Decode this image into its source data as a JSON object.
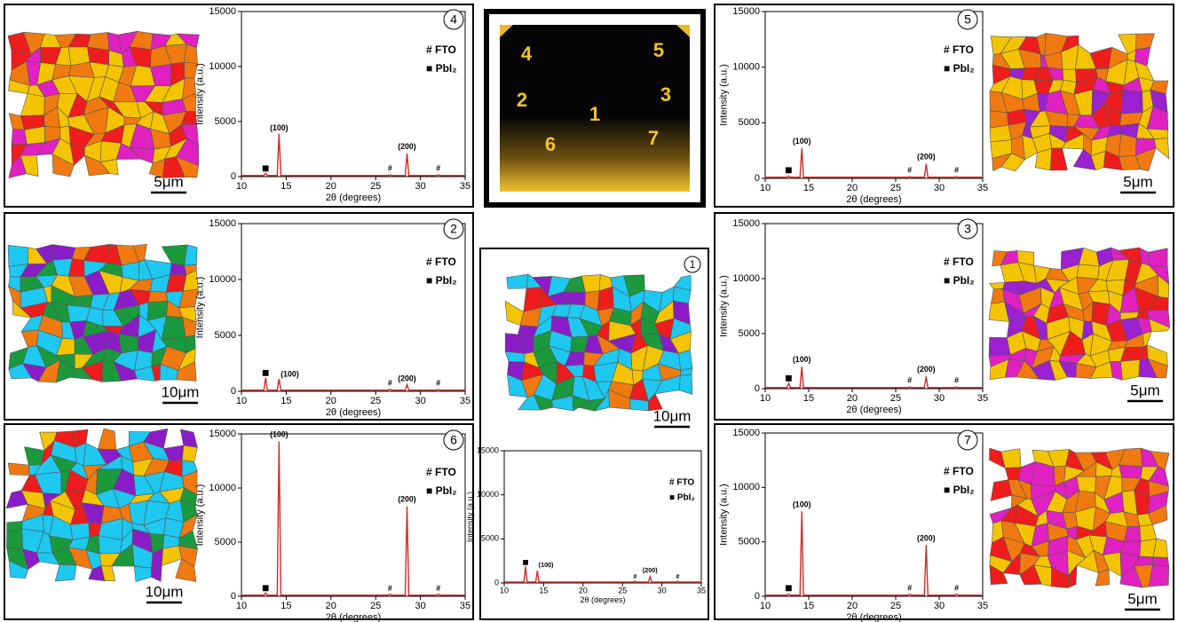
{
  "chart_data": [
    {
      "type": "line",
      "panel": "4",
      "scale_bar": "5μm",
      "xlabel": "2θ (degrees)",
      "ylabel": "Intensity (a.u.)",
      "xlim": [
        10,
        35
      ],
      "xticks": [
        10,
        15,
        20,
        25,
        30,
        35
      ],
      "ylim": [
        0,
        15000
      ],
      "yticks": [
        0,
        5000,
        10000,
        15000
      ],
      "legend": [
        "# FTO",
        "■ PbI₂"
      ],
      "series": [
        {
          "color": "#d62a2a",
          "x": [
            10,
            12.5,
            12.7,
            12.9,
            14.0,
            14.2,
            14.4,
            26.4,
            26.6,
            26.8,
            28.3,
            28.5,
            28.7,
            31.8,
            32,
            32.2,
            35
          ],
          "values": [
            100,
            100,
            300,
            100,
            100,
            3900,
            100,
            100,
            150,
            100,
            100,
            2100,
            100,
            100,
            150,
            100,
            100
          ]
        }
      ],
      "annotations": [
        {
          "text": "■",
          "x": 12.7,
          "y": 700
        },
        {
          "text": "(100)",
          "x": 14.2,
          "y": 4400
        },
        {
          "text": "(200)",
          "x": 28.5,
          "y": 2700
        },
        {
          "text": "#",
          "x": 26.6,
          "y": 700
        },
        {
          "text": "#",
          "x": 32,
          "y": 700
        }
      ]
    },
    {
      "type": "line",
      "panel": "5",
      "scale_bar": "5μm",
      "xlabel": "2θ (degrees)",
      "ylabel": "Intensity (a.u.)",
      "xlim": [
        10,
        35
      ],
      "xticks": [
        10,
        15,
        20,
        25,
        30,
        35
      ],
      "ylim": [
        0,
        15000
      ],
      "yticks": [
        0,
        5000,
        10000,
        15000
      ],
      "legend": [
        "# FTO",
        "■ PbI₂"
      ],
      "series": [
        {
          "color": "#d62a2a",
          "x": [
            10,
            12.5,
            12.7,
            12.9,
            14.0,
            14.2,
            14.4,
            26.4,
            26.6,
            26.8,
            28.3,
            28.5,
            28.7,
            31.8,
            32,
            32.2,
            35
          ],
          "values": [
            100,
            100,
            200,
            100,
            100,
            2700,
            100,
            100,
            150,
            100,
            100,
            1300,
            100,
            100,
            150,
            100,
            100
          ]
        }
      ],
      "annotations": [
        {
          "text": "■",
          "x": 12.7,
          "y": 700
        },
        {
          "text": "(100)",
          "x": 14.2,
          "y": 3300
        },
        {
          "text": "(200)",
          "x": 28.5,
          "y": 1900
        },
        {
          "text": "#",
          "x": 26.6,
          "y": 700
        },
        {
          "text": "#",
          "x": 32,
          "y": 700
        }
      ]
    },
    {
      "type": "line",
      "panel": "2",
      "scale_bar": "10μm",
      "xlabel": "2θ (degrees)",
      "ylabel": "Intensity (a.u.)",
      "xlim": [
        10,
        35
      ],
      "xticks": [
        10,
        15,
        20,
        25,
        30,
        35
      ],
      "ylim": [
        0,
        15000
      ],
      "yticks": [
        0,
        5000,
        10000,
        15000
      ],
      "legend": [
        "# FTO",
        "■ PbI₂"
      ],
      "series": [
        {
          "color": "#d62a2a",
          "x": [
            10,
            12.5,
            12.7,
            12.9,
            14.0,
            14.2,
            14.4,
            26.4,
            26.6,
            26.8,
            28.3,
            28.5,
            28.7,
            31.8,
            32,
            32.2,
            35
          ],
          "values": [
            100,
            100,
            1200,
            100,
            100,
            1100,
            100,
            100,
            200,
            100,
            100,
            600,
            100,
            100,
            150,
            100,
            100
          ]
        }
      ],
      "annotations": [
        {
          "text": "■",
          "x": 12.7,
          "y": 1600
        },
        {
          "text": "(100)",
          "x": 15.4,
          "y": 1500
        },
        {
          "text": "(200)",
          "x": 28.5,
          "y": 1100
        },
        {
          "text": "#",
          "x": 26.6,
          "y": 700
        },
        {
          "text": "#",
          "x": 32,
          "y": 700
        }
      ]
    },
    {
      "type": "line",
      "panel": "3",
      "scale_bar": "5μm",
      "xlabel": "2θ (degrees)",
      "ylabel": "Intensity (a.u.)",
      "xlim": [
        10,
        35
      ],
      "xticks": [
        10,
        15,
        20,
        25,
        30,
        35
      ],
      "ylim": [
        0,
        15000
      ],
      "yticks": [
        0,
        5000,
        10000,
        15000
      ],
      "legend": [
        "# FTO",
        "■ PbI₂"
      ],
      "series": [
        {
          "color": "#d62a2a",
          "x": [
            10,
            12.5,
            12.7,
            12.9,
            14.0,
            14.2,
            14.4,
            26.4,
            26.6,
            26.8,
            28.3,
            28.5,
            28.7,
            31.8,
            32,
            32.2,
            35
          ],
          "values": [
            100,
            100,
            500,
            100,
            100,
            2000,
            100,
            100,
            150,
            100,
            100,
            1100,
            100,
            100,
            150,
            100,
            100
          ]
        }
      ],
      "annotations": [
        {
          "text": "■",
          "x": 12.7,
          "y": 900
        },
        {
          "text": "(100)",
          "x": 14.2,
          "y": 2600
        },
        {
          "text": "(200)",
          "x": 28.5,
          "y": 1700
        },
        {
          "text": "#",
          "x": 26.6,
          "y": 700
        },
        {
          "text": "#",
          "x": 32,
          "y": 700
        }
      ]
    },
    {
      "type": "line",
      "panel": "6",
      "scale_bar": "10μm",
      "xlabel": "2θ (degrees)",
      "ylabel": "Intensity (a.u.)",
      "xlim": [
        10,
        35
      ],
      "xticks": [
        10,
        15,
        20,
        25,
        30,
        35
      ],
      "ylim": [
        0,
        15000
      ],
      "yticks": [
        0,
        5000,
        10000,
        15000
      ],
      "legend": [
        "# FTO",
        "■ PbI₂"
      ],
      "series": [
        {
          "color": "#d62a2a",
          "x": [
            10,
            12.5,
            12.7,
            12.9,
            14.0,
            14.2,
            14.4,
            26.4,
            26.6,
            26.8,
            28.3,
            28.5,
            28.7,
            31.8,
            32,
            32.2,
            35
          ],
          "values": [
            100,
            100,
            300,
            100,
            100,
            14300,
            100,
            100,
            200,
            100,
            100,
            8300,
            100,
            100,
            200,
            100,
            100
          ]
        }
      ],
      "annotations": [
        {
          "text": "■",
          "x": 12.7,
          "y": 700
        },
        {
          "text": "(100)",
          "x": 14.2,
          "y": 14900
        },
        {
          "text": "(200)",
          "x": 28.5,
          "y": 8900
        },
        {
          "text": "#",
          "x": 26.6,
          "y": 700
        },
        {
          "text": "#",
          "x": 32,
          "y": 700
        }
      ]
    },
    {
      "type": "line",
      "panel": "7",
      "scale_bar": "5μm",
      "xlabel": "2θ (degrees)",
      "ylabel": "Intensity (a.u.)",
      "xlim": [
        10,
        35
      ],
      "xticks": [
        10,
        15,
        20,
        25,
        30,
        35
      ],
      "ylim": [
        0,
        15000
      ],
      "yticks": [
        0,
        5000,
        10000,
        15000
      ],
      "legend": [
        "# FTO",
        "■ PbI₂"
      ],
      "series": [
        {
          "color": "#d62a2a",
          "x": [
            10,
            12.5,
            12.7,
            12.9,
            14.0,
            14.2,
            14.4,
            26.4,
            26.6,
            26.8,
            28.3,
            28.5,
            28.7,
            31.8,
            32,
            32.2,
            35
          ],
          "values": [
            100,
            100,
            200,
            100,
            100,
            7800,
            100,
            100,
            200,
            100,
            100,
            4700,
            100,
            100,
            200,
            100,
            100
          ]
        }
      ],
      "annotations": [
        {
          "text": "■",
          "x": 12.7,
          "y": 700
        },
        {
          "text": "(100)",
          "x": 14.2,
          "y": 8400
        },
        {
          "text": "(200)",
          "x": 28.5,
          "y": 5300
        },
        {
          "text": "#",
          "x": 26.6,
          "y": 700
        },
        {
          "text": "#",
          "x": 32,
          "y": 700
        }
      ]
    },
    {
      "type": "line",
      "panel": "1",
      "scale_bar": "10μm",
      "xlabel": "2θ (degrees)",
      "ylabel": "Intensity (a.u.)",
      "xlim": [
        10,
        35
      ],
      "xticks": [
        10,
        15,
        20,
        25,
        30,
        35
      ],
      "ylim": [
        0,
        15000
      ],
      "yticks": [
        0,
        5000,
        10000,
        15000
      ],
      "legend": [
        "# FTO",
        "■ PbI₂"
      ],
      "series": [
        {
          "color": "#d62a2a",
          "x": [
            10,
            12.5,
            12.7,
            12.9,
            14.0,
            14.2,
            14.4,
            26.4,
            26.6,
            26.8,
            28.3,
            28.5,
            28.7,
            31.8,
            32,
            32.2,
            35
          ],
          "values": [
            100,
            100,
            1900,
            100,
            100,
            1400,
            100,
            100,
            200,
            100,
            100,
            700,
            100,
            100,
            200,
            100,
            100
          ]
        }
      ],
      "annotations": [
        {
          "text": "■",
          "x": 12.7,
          "y": 2300
        },
        {
          "text": "(100)",
          "x": 15.3,
          "y": 2000
        },
        {
          "text": "(200)",
          "x": 28.5,
          "y": 1400
        },
        {
          "text": "#",
          "x": 26.6,
          "y": 700
        },
        {
          "text": "#",
          "x": 32,
          "y": 700
        }
      ]
    }
  ],
  "photo": {
    "labels": [
      "4",
      "5",
      "2",
      "3",
      "1",
      "6",
      "7"
    ]
  }
}
